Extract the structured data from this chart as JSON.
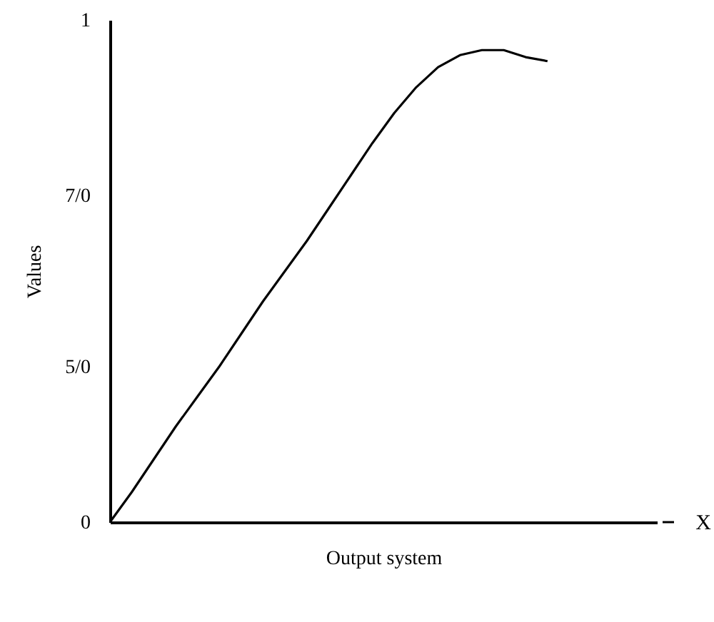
{
  "chart_data": {
    "type": "line",
    "xlabel": "Output system",
    "ylabel": "Values",
    "categories": [
      null,
      null,
      null,
      null,
      null,
      null,
      null,
      null,
      null,
      null,
      null,
      null,
      null,
      null,
      null,
      null,
      null,
      null,
      null,
      null,
      null,
      null,
      null,
      null,
      null,
      null
    ],
    "series": [
      {
        "color": "#000000",
        "values": [
          0,
          0.06,
          0.125,
          0.19,
          0.25,
          0.31,
          0.375,
          0.44,
          0.5,
          0.56,
          0.625,
          0.69,
          0.755,
          0.815,
          0.866,
          0.906,
          0.93,
          0.94,
          0.94,
          0.926,
          0.918,
          null,
          null,
          null,
          null,
          null
        ]
      }
    ],
    "ylim": [
      0,
      1
    ],
    "yticks": [
      0,
      {
        "value": 0.31,
        "label": "5/0"
      },
      {
        "value": 0.65,
        "label": "7/0"
      },
      1
    ],
    "tick_labels": "y",
    "grid": false,
    "marker": "none",
    "line_style": "solid",
    "annotations": [
      "X"
    ]
  }
}
